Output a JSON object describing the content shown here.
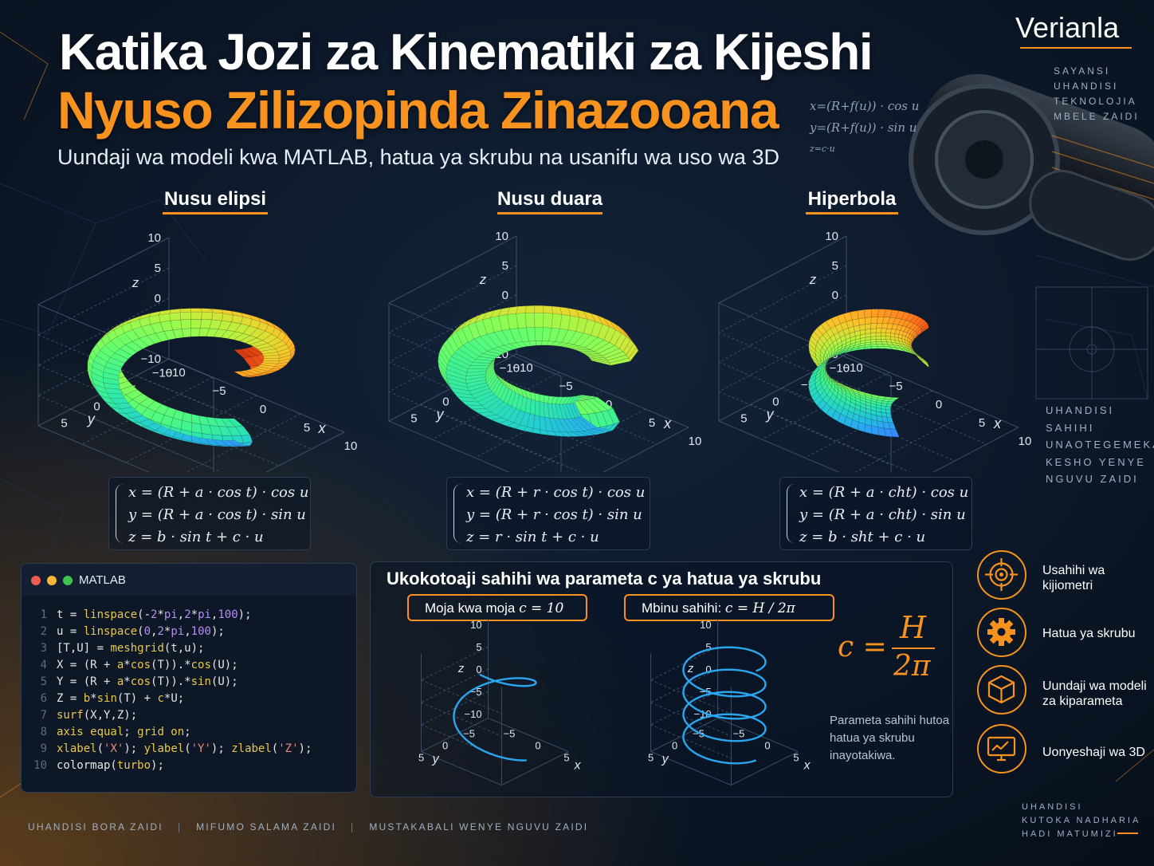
{
  "header": {
    "title_line1": "Katika Jozi za Kinematiki za Kijeshi",
    "title_line2": "Nyuso Zilizopinda Zinazooana",
    "subtitle": "Uundaji wa modeli kwa MATLAB, hatua ya skrubu na usanifu wa uso wa 3D"
  },
  "brand": {
    "name": "Verianla",
    "tags": [
      "SAYANSI",
      "UHANDISI",
      "TEKNOLOJIA",
      "MBELE ZAIDI"
    ]
  },
  "background_formulas": [
    "x=(R+f(u)) · cos u",
    "y=(R+f(u)) · sin u",
    "z=c·u"
  ],
  "side_words": [
    "UHANDISI",
    "SAHIHI",
    "UNAOTEGEMEKA",
    "KESHO YENYE",
    "NGUVU ZAIDI"
  ],
  "bottom_right_words": [
    "UHANDISI",
    "KUTOKA NADHARIA",
    "HADI MATUMIZI"
  ],
  "surfaces": [
    {
      "title": "Nusu elipsi",
      "z_ticks": [
        "10",
        "5",
        "0",
        "−5",
        "−10"
      ],
      "y_ticks": [
        "−10",
        "−5",
        "0",
        "5"
      ],
      "x_ticks": [
        "−10",
        "−5",
        "0",
        "5",
        "10"
      ],
      "ylabel": "y",
      "xlabel": "x",
      "zlabel": "z",
      "formula": [
        "x = (R + a · cos t) · cos u",
        "y = (R + a · cos t) · sin u",
        "z = b · sin t + c · u"
      ]
    },
    {
      "title": "Nusu duara",
      "z_ticks": [
        "10",
        "5",
        "0",
        "−5",
        "−10"
      ],
      "y_ticks": [
        "−10",
        "−5",
        "0",
        "5"
      ],
      "x_ticks": [
        "−10",
        "−5",
        "0",
        "5",
        "10"
      ],
      "ylabel": "y",
      "xlabel": "x",
      "zlabel": "z",
      "formula": [
        "x = (R + r · cos t) · cos u",
        "y = (R + r · cos t) · sin u",
        "z = r · sin t + c · u"
      ]
    },
    {
      "title": "Hiperbola",
      "z_ticks": [
        "10",
        "5",
        "0",
        "−5",
        "−10"
      ],
      "y_ticks": [
        "−10",
        "−5",
        "0",
        "5"
      ],
      "x_ticks": [
        "−10",
        "−5",
        "0",
        "5",
        "10"
      ],
      "ylabel": "y",
      "xlabel": "x",
      "zlabel": "z",
      "formula": [
        "x = (R + a · cht) · cos u",
        "y = (R + a · cht) · sin u",
        "z = b · sht + c · u"
      ]
    }
  ],
  "matlab": {
    "label": "MATLAB",
    "lines": [
      [
        "1",
        [
          [
            "tk",
            "t = "
          ],
          [
            "fn",
            "linspace"
          ],
          [
            "tk",
            "(-"
          ],
          [
            "nm",
            "2"
          ],
          [
            "tk",
            "*"
          ],
          [
            "nm",
            "pi"
          ],
          [
            "tk",
            ","
          ],
          [
            "nm",
            "2"
          ],
          [
            "tk",
            "*"
          ],
          [
            "nm",
            "pi"
          ],
          [
            "tk",
            ","
          ],
          [
            "nm",
            "100"
          ],
          [
            "tk",
            ");"
          ]
        ]
      ],
      [
        "2",
        [
          [
            "tk",
            "u = "
          ],
          [
            "fn",
            "linspace"
          ],
          [
            "tk",
            "("
          ],
          [
            "nm",
            "0"
          ],
          [
            "tk",
            ","
          ],
          [
            "nm",
            "2"
          ],
          [
            "tk",
            "*"
          ],
          [
            "nm",
            "pi"
          ],
          [
            "tk",
            ","
          ],
          [
            "nm",
            "100"
          ],
          [
            "tk",
            ");"
          ]
        ]
      ],
      [
        "3",
        [
          [
            "tk",
            "[T,U] = "
          ],
          [
            "fn",
            "meshgrid"
          ],
          [
            "tk",
            "(t,u);"
          ]
        ]
      ],
      [
        "4",
        [
          [
            "tk",
            "X = (R + "
          ],
          [
            "fn",
            "a"
          ],
          [
            "tk",
            "*"
          ],
          [
            "fn",
            "cos"
          ],
          [
            "tk",
            "(T)).*"
          ],
          [
            "fn",
            "cos"
          ],
          [
            "tk",
            "(U);"
          ]
        ]
      ],
      [
        "5",
        [
          [
            "tk",
            "Y = (R + "
          ],
          [
            "fn",
            "a"
          ],
          [
            "tk",
            "*"
          ],
          [
            "fn",
            "cos"
          ],
          [
            "tk",
            "(T)).*"
          ],
          [
            "fn",
            "sin"
          ],
          [
            "tk",
            "(U);"
          ]
        ]
      ],
      [
        "6",
        [
          [
            "tk",
            "Z = "
          ],
          [
            "fn",
            "b"
          ],
          [
            "tk",
            "*"
          ],
          [
            "fn",
            "sin"
          ],
          [
            "tk",
            "(T) + "
          ],
          [
            "fn",
            "c"
          ],
          [
            "tk",
            "*U;"
          ]
        ]
      ],
      [
        "7",
        [
          [
            "fn",
            "surf"
          ],
          [
            "tk",
            "(X,Y,Z);"
          ]
        ]
      ],
      [
        "8",
        [
          [
            "kw",
            "axis equal"
          ],
          [
            "tk",
            "; "
          ],
          [
            "kw",
            "grid on"
          ],
          [
            "tk",
            ";"
          ]
        ]
      ],
      [
        "9",
        [
          [
            "fn",
            "xlabel"
          ],
          [
            "tk",
            "("
          ],
          [
            "st",
            "'X'"
          ],
          [
            "tk",
            "); "
          ],
          [
            "fn",
            "ylabel"
          ],
          [
            "tk",
            "("
          ],
          [
            "st",
            "'Y'"
          ],
          [
            "tk",
            "); "
          ],
          [
            "fn",
            "zlabel"
          ],
          [
            "tk",
            "("
          ],
          [
            "st",
            "'Z'"
          ],
          [
            "tk",
            ");"
          ]
        ]
      ],
      [
        "10",
        [
          [
            "tk",
            "colormap("
          ],
          [
            "fn",
            "turbo"
          ],
          [
            "tk",
            ");"
          ]
        ]
      ]
    ]
  },
  "calc": {
    "title": "Ukokotoaji sahihi wa parameta c ya hatua ya skrubu",
    "option1_text": "Moja kwa moja ",
    "option1_math": "c = 10",
    "option2_text": "Mbinu sahihi: ",
    "option2_math": "c = H / 2π",
    "formula_lhs": "c =",
    "formula_num": "H",
    "formula_den": "2π",
    "note": "Parameta sahihi hutoa hatua ya skrubu inayotakiwa.",
    "helix_left": {
      "turns": 1.2,
      "z_ticks": [
        "10",
        "5",
        "0",
        "−5",
        "−10"
      ],
      "y_ticks": [
        "−5",
        "0",
        "5"
      ],
      "x_ticks": [
        "−5",
        "0",
        "5"
      ],
      "zlabel": "z",
      "ylabel": "y",
      "xlabel": "x"
    },
    "helix_right": {
      "turns": 4.0,
      "z_ticks": [
        "10",
        "5",
        "0",
        "−5",
        "−10"
      ],
      "y_ticks": [
        "−5",
        "0",
        "5"
      ],
      "x_ticks": [
        "−5",
        "0",
        "5"
      ],
      "zlabel": "z",
      "ylabel": "y",
      "xlabel": "x"
    }
  },
  "features": [
    {
      "icon": "target-icon",
      "label": "Usahihi wa kijiometri"
    },
    {
      "icon": "gear-icon",
      "label": "Hatua ya skrubu"
    },
    {
      "icon": "cube-icon",
      "label": "Uundaji wa modeli za kiparameta"
    },
    {
      "icon": "monitor-chart-icon",
      "label": "Uonyeshaji wa 3D"
    }
  ],
  "footer": [
    "UHANDISI BORA ZAIDI",
    "MIFUMO SALAMA ZAIDI",
    "MUSTAKABALI WENYE NGUVU ZAIDI"
  ],
  "colors": {
    "accent": "#f7921e",
    "background": "#0b1626",
    "helix": "#2aa6ee"
  }
}
